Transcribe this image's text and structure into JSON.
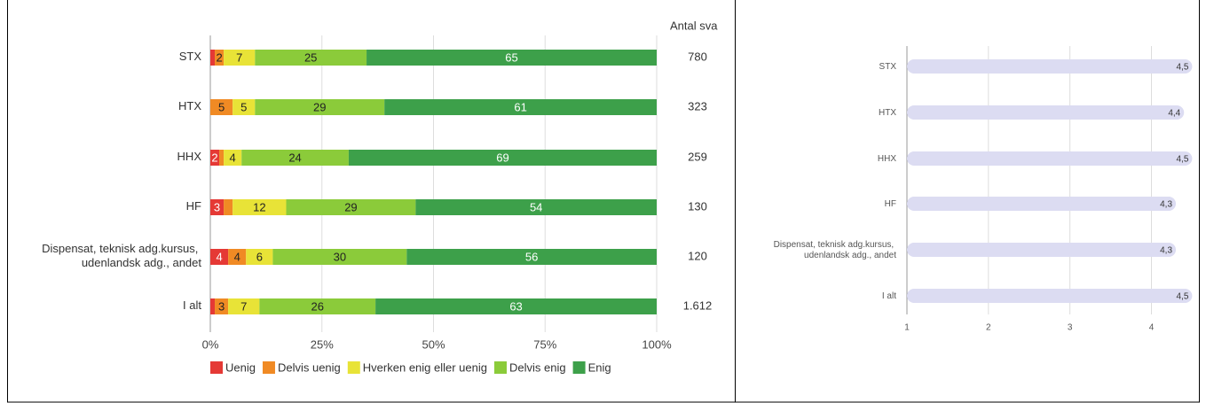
{
  "chart_data": [
    {
      "type": "stacked_bar",
      "categories": [
        "STX",
        "HTX",
        "HHX",
        "HF",
        "Dispensat, teknisk adg.kursus, udenlandsk adg., andet",
        "I alt"
      ],
      "series": [
        {
          "name": "Uenig",
          "color": "#e53935",
          "values": [
            1,
            0,
            2,
            3,
            4,
            1
          ],
          "value_labels": [
            null,
            null,
            "2",
            "3",
            "4",
            null
          ]
        },
        {
          "name": "Delvis uenig",
          "color": "#f08a24",
          "values": [
            2,
            5,
            1,
            2,
            4,
            3
          ],
          "value_labels": [
            "2",
            "5",
            null,
            null,
            "4",
            "3"
          ]
        },
        {
          "name": "Hverken enig eller uenig",
          "color": "#e8e337",
          "values": [
            7,
            5,
            4,
            12,
            6,
            7
          ]
        },
        {
          "name": "Delvis enig",
          "color": "#8bcb3a",
          "values": [
            25,
            29,
            24,
            29,
            30,
            26
          ]
        },
        {
          "name": "Enig",
          "color": "#3da04a",
          "values": [
            65,
            61,
            69,
            54,
            56,
            63
          ]
        }
      ],
      "xlim": [
        0,
        100
      ],
      "xticks": [
        {
          "value": 0,
          "label": "0%"
        },
        {
          "value": 25,
          "label": "25%"
        },
        {
          "value": 50,
          "label": "50%"
        },
        {
          "value": 75,
          "label": "75%"
        },
        {
          "value": 100,
          "label": "100%"
        }
      ],
      "grid": true,
      "legend": "bottom",
      "count_column": {
        "header": "Antal sva",
        "values": [
          "780",
          "323",
          "259",
          "130",
          "120",
          "1.612"
        ]
      }
    },
    {
      "type": "bar",
      "categories": [
        "STX",
        "HTX",
        "HHX",
        "HF",
        "Dispensat, teknisk adg.kursus, udenlandsk adg., andet",
        "I alt"
      ],
      "values": [
        4.5,
        4.4,
        4.5,
        4.3,
        4.3,
        4.5
      ],
      "value_labels": [
        "4,5",
        "4,4",
        "4,5",
        "4,3",
        "4,3",
        "4,5"
      ],
      "color": "#dcdcf2",
      "xlim": [
        1,
        4.55
      ],
      "xticks": [
        1,
        2,
        3,
        4
      ],
      "grid": true
    }
  ]
}
